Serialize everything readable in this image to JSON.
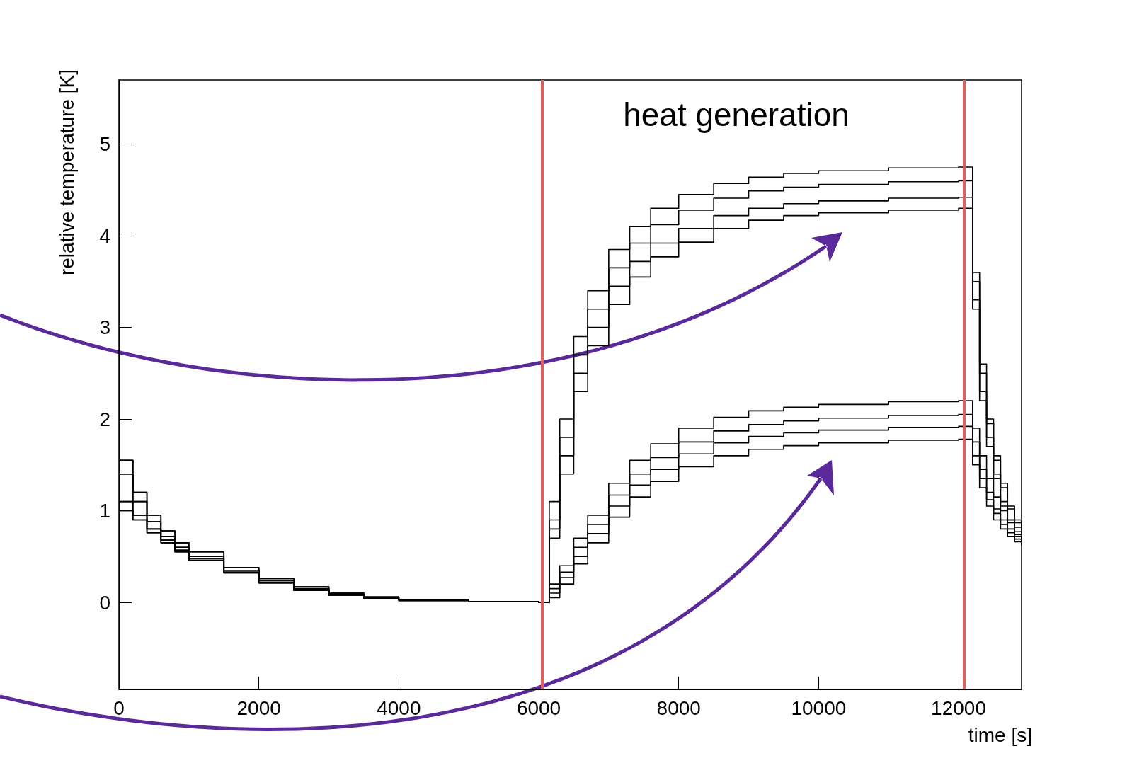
{
  "chart_data": {
    "type": "step",
    "xlabel": "time [s]",
    "ylabel": "relative temperature [K]",
    "annotations": [
      "heat generation"
    ],
    "x": [
      0,
      200,
      400,
      600,
      800,
      1000,
      1500,
      2000,
      2500,
      3000,
      3500,
      4000,
      5000,
      6000,
      6050,
      6150,
      6300,
      6500,
      6700,
      7000,
      7300,
      7600,
      8000,
      8500,
      9000,
      9500,
      10000,
      11000,
      12000,
      12080,
      12200,
      12300,
      12400,
      12500,
      12600,
      12700,
      12800,
      12900
    ],
    "series": [
      {
        "color": "#000000",
        "values": [
          1.55,
          1.2,
          0.95,
          0.78,
          0.65,
          0.55,
          0.38,
          0.26,
          0.17,
          0.1,
          0.06,
          0.03,
          0.01,
          0,
          0,
          1.1,
          2.0,
          2.9,
          3.4,
          3.85,
          4.1,
          4.3,
          4.45,
          4.57,
          4.64,
          4.68,
          4.71,
          4.74,
          4.75,
          4.75,
          3.6,
          2.6,
          2.0,
          1.6,
          1.3,
          1.05,
          0.9,
          0.8
        ]
      },
      {
        "color": "#000000",
        "values": [
          1.4,
          1.1,
          0.88,
          0.72,
          0.6,
          0.5,
          0.35,
          0.24,
          0.15,
          0.09,
          0.05,
          0.03,
          0.01,
          0,
          0,
          0.9,
          1.8,
          2.7,
          3.2,
          3.65,
          3.92,
          4.12,
          4.28,
          4.41,
          4.49,
          4.53,
          4.56,
          4.59,
          4.6,
          4.6,
          3.5,
          2.5,
          1.95,
          1.55,
          1.25,
          1.02,
          0.87,
          0.78
        ]
      },
      {
        "color": "#000000",
        "values": [
          1.1,
          0.95,
          0.8,
          0.68,
          0.57,
          0.48,
          0.33,
          0.22,
          0.14,
          0.08,
          0.05,
          0.02,
          0.01,
          0,
          0,
          0.8,
          1.6,
          2.5,
          3.0,
          3.45,
          3.72,
          3.92,
          4.08,
          4.22,
          4.3,
          4.35,
          4.38,
          4.41,
          4.42,
          4.42,
          3.3,
          2.3,
          1.8,
          1.4,
          1.1,
          0.9,
          0.77,
          0.68
        ]
      },
      {
        "color": "#000000",
        "values": [
          1.0,
          0.9,
          0.76,
          0.65,
          0.55,
          0.46,
          0.32,
          0.21,
          0.13,
          0.08,
          0.04,
          0.02,
          0.01,
          0,
          0,
          0.7,
          1.4,
          2.3,
          2.8,
          3.25,
          3.55,
          3.77,
          3.93,
          4.08,
          4.17,
          4.22,
          4.25,
          4.28,
          4.3,
          4.3,
          3.2,
          2.2,
          1.7,
          1.35,
          1.05,
          0.87,
          0.74,
          0.66
        ]
      },
      {
        "color": "#000000",
        "values": [
          1.55,
          1.2,
          0.95,
          0.78,
          0.65,
          0.55,
          0.38,
          0.26,
          0.17,
          0.1,
          0.06,
          0.03,
          0.01,
          0,
          0,
          0.2,
          0.4,
          0.7,
          0.95,
          1.3,
          1.55,
          1.73,
          1.9,
          2.02,
          2.09,
          2.13,
          2.16,
          2.19,
          2.2,
          2.2,
          1.9,
          1.6,
          1.35,
          1.15,
          1.0,
          0.9,
          0.82,
          0.76
        ]
      },
      {
        "color": "#000000",
        "values": [
          1.4,
          1.1,
          0.88,
          0.72,
          0.6,
          0.5,
          0.35,
          0.24,
          0.15,
          0.09,
          0.05,
          0.03,
          0.01,
          0,
          0,
          0.15,
          0.33,
          0.6,
          0.85,
          1.17,
          1.4,
          1.58,
          1.75,
          1.87,
          1.94,
          1.98,
          2.01,
          2.04,
          2.05,
          2.05,
          1.75,
          1.45,
          1.2,
          1.02,
          0.9,
          0.8,
          0.72,
          0.67
        ]
      },
      {
        "color": "#000000",
        "values": [
          1.1,
          0.95,
          0.8,
          0.68,
          0.57,
          0.48,
          0.33,
          0.22,
          0.14,
          0.08,
          0.05,
          0.02,
          0.01,
          0,
          0,
          0.1,
          0.27,
          0.5,
          0.75,
          1.05,
          1.28,
          1.45,
          1.62,
          1.74,
          1.81,
          1.85,
          1.88,
          1.91,
          1.92,
          1.92,
          1.6,
          1.35,
          1.12,
          0.97,
          0.85,
          0.76,
          0.69,
          0.64
        ]
      },
      {
        "color": "#000000",
        "values": [
          1.0,
          0.9,
          0.76,
          0.65,
          0.55,
          0.46,
          0.32,
          0.21,
          0.13,
          0.08,
          0.04,
          0.02,
          0.01,
          0,
          0,
          0.05,
          0.2,
          0.42,
          0.65,
          0.93,
          1.15,
          1.32,
          1.48,
          1.6,
          1.67,
          1.71,
          1.74,
          1.77,
          1.78,
          1.78,
          1.5,
          1.25,
          1.05,
          0.9,
          0.8,
          0.72,
          0.66,
          0.62
        ]
      }
    ],
    "xlim": [
      0,
      12900
    ],
    "xticks": [
      0,
      2000,
      4000,
      6000,
      8000,
      10000,
      12000
    ],
    "ylim": [
      -0.95,
      5.7
    ],
    "yticks": [
      0,
      1,
      2,
      3,
      4,
      5
    ],
    "ref_lines": [
      {
        "axis": "x",
        "value": 6050,
        "color": "#e06060"
      },
      {
        "axis": "x",
        "value": 12080,
        "color": "#e06060"
      }
    ],
    "grid": false
  }
}
